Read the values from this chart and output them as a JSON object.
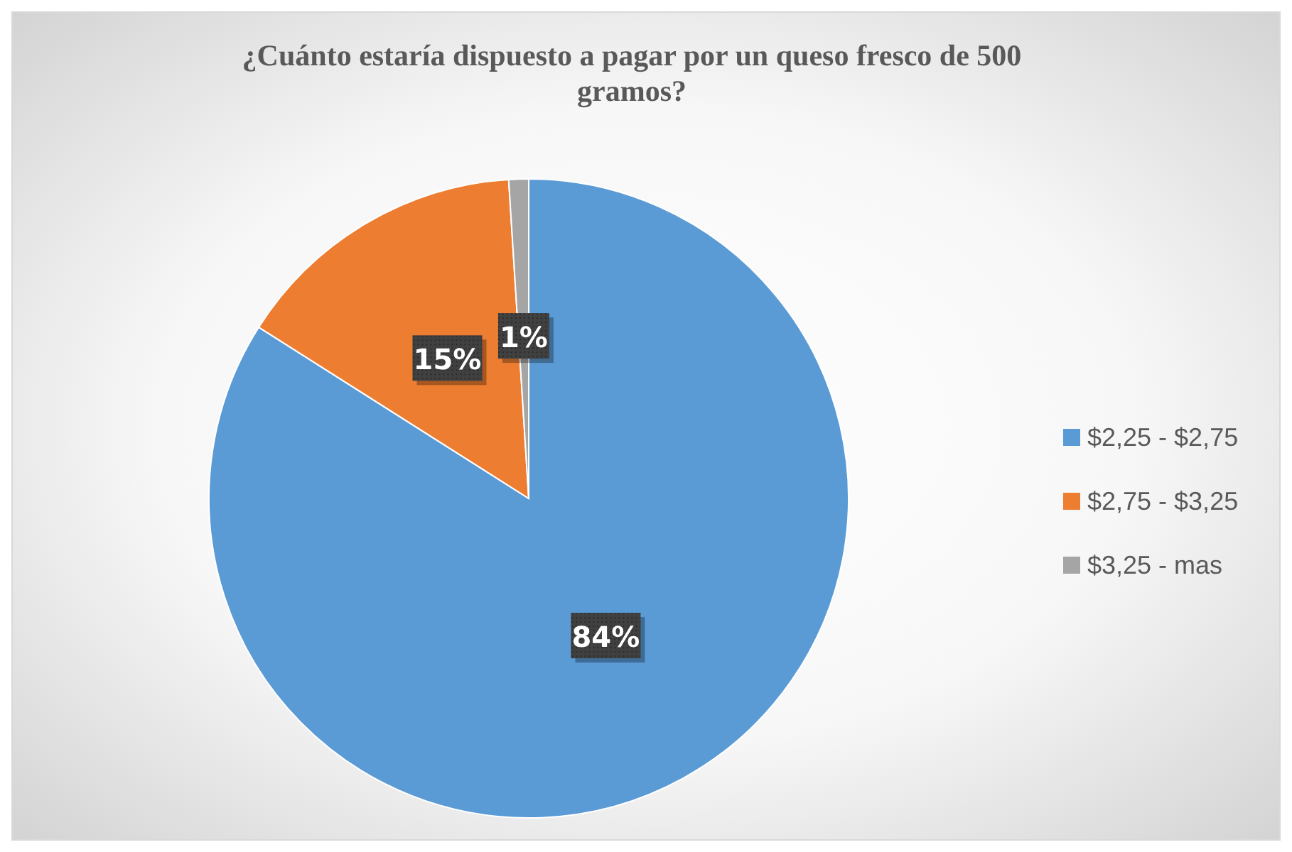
{
  "chart_data": {
    "type": "pie",
    "title": "¿Cuánto estaría dispuesto a pagar por un queso fresco de 500 gramos?",
    "categories": [
      "$2,25 - $2,75",
      "$2,75 - $3,25",
      "$3,25 - mas"
    ],
    "values": [
      84,
      15,
      1
    ],
    "colors": [
      "#5b9bd5",
      "#ed7d31",
      "#a5a5a5"
    ],
    "value_labels": [
      "84%",
      "15%",
      "1%"
    ],
    "legend": "right"
  }
}
